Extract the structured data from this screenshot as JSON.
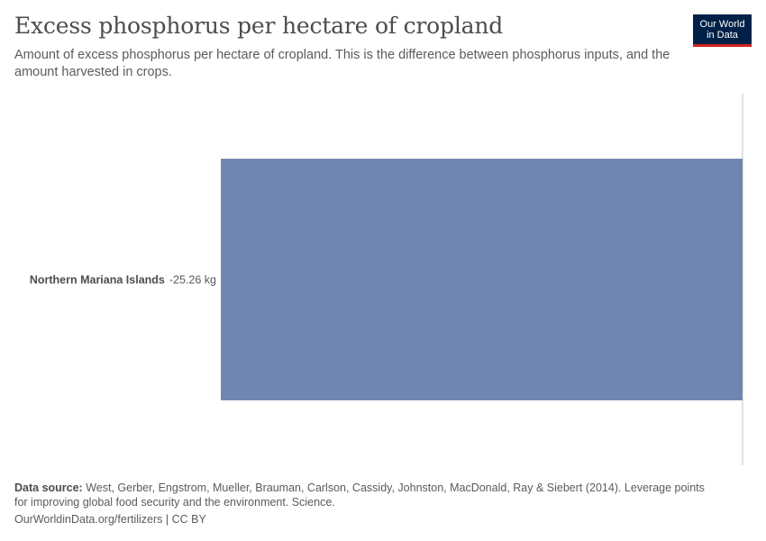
{
  "header": {
    "title": "Excess phosphorus per hectare of cropland",
    "subtitle": "Amount of excess phosphorus per hectare of cropland. This is the difference between phosphorus inputs, and the amount harvested in crops."
  },
  "logo": {
    "line1": "Our World",
    "line2": "in Data",
    "bg_color": "#002147",
    "accent_color": "#ce261e"
  },
  "chart_data": {
    "type": "bar",
    "orientation": "horizontal",
    "categories": [
      "Northern Mariana Islands"
    ],
    "values": [
      -25.26
    ],
    "value_labels": [
      "-25.26 kg"
    ],
    "unit": "kg",
    "xlim": [
      -25.26,
      0
    ],
    "bar_color": "#6f87b0",
    "grid": false,
    "legend": "none"
  },
  "footer": {
    "source_label": "Data source:",
    "source_text": "West, Gerber, Engstrom, Mueller, Brauman, Carlson, Cassidy, Johnston, MacDonald, Ray & Siebert (2014). Leverage points for improving global food security and the environment. Science.",
    "link": "OurWorldinData.org/fertilizers | CC BY"
  }
}
